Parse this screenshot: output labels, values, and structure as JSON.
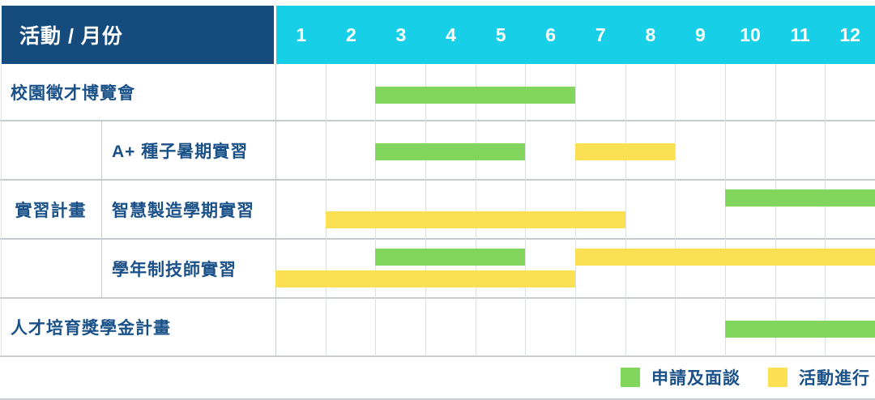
{
  "header": {
    "title": "活動 / 月份",
    "months": [
      "1",
      "2",
      "3",
      "4",
      "5",
      "6",
      "7",
      "8",
      "9",
      "10",
      "11",
      "12"
    ]
  },
  "colors": {
    "header_bg": "#164b7e",
    "months_bg": "#18cfe8",
    "header_text": "#ffffff",
    "label_text": "#1a5189",
    "apply_green": "#82d65e",
    "active_yellow": "#fbe054",
    "grid_horizontal": "#c6cbd0",
    "grid_vertical": "#dde1e5",
    "divider": "#c6cbd0"
  },
  "legend": [
    {
      "key": "apply",
      "label": "申請及面談",
      "color": "#82d65e"
    },
    {
      "key": "active",
      "label": "活動進行",
      "color": "#fbe054"
    }
  ],
  "chart_data": {
    "type": "bar",
    "subtype": "gantt",
    "title": "活動 / 月份",
    "xlabel": "月份",
    "x_ticks": [
      "1",
      "2",
      "3",
      "4",
      "5",
      "6",
      "7",
      "8",
      "9",
      "10",
      "11",
      "12"
    ],
    "x_range": [
      1,
      12
    ],
    "grid": true,
    "legend_position": "bottom-right",
    "phases": {
      "apply": "申請及面談",
      "active": "活動進行"
    },
    "rows": [
      {
        "group": "",
        "label": "校園徵才博覽會",
        "lines": 1,
        "bars": [
          {
            "phase": "apply",
            "phase_label": "申請及面談",
            "start_month": 3,
            "end_month": 6,
            "line": 0
          }
        ]
      },
      {
        "group": "實習計畫",
        "label": "A+ 種子暑期實習",
        "lines": 1,
        "bars": [
          {
            "phase": "apply",
            "phase_label": "申請及面談",
            "start_month": 3,
            "end_month": 5,
            "line": 0
          },
          {
            "phase": "active",
            "phase_label": "活動進行",
            "start_month": 7,
            "end_month": 8,
            "line": 0
          }
        ]
      },
      {
        "group": "實習計畫",
        "label": "智慧製造學期實習",
        "lines": 2,
        "bars": [
          {
            "phase": "apply",
            "phase_label": "申請及面談",
            "start_month": 10,
            "end_month": 12,
            "line": 0
          },
          {
            "phase": "active",
            "phase_label": "活動進行",
            "start_month": 2,
            "end_month": 7,
            "line": 1
          }
        ]
      },
      {
        "group": "實習計畫",
        "label": "學年制技師實習",
        "lines": 2,
        "bars": [
          {
            "phase": "apply",
            "phase_label": "申請及面談",
            "start_month": 3,
            "end_month": 5,
            "line": 0
          },
          {
            "phase": "active",
            "phase_label": "活動進行",
            "start_month": 7,
            "end_month": 12,
            "line": 0
          },
          {
            "phase": "active",
            "phase_label": "活動進行",
            "start_month": 1,
            "end_month": 6,
            "line": 1
          }
        ]
      },
      {
        "group": "",
        "label": "人才培育獎學金計畫",
        "lines": 1,
        "bars": [
          {
            "phase": "apply",
            "phase_label": "申請及面談",
            "start_month": 10,
            "end_month": 12,
            "line": 0
          }
        ]
      }
    ]
  }
}
